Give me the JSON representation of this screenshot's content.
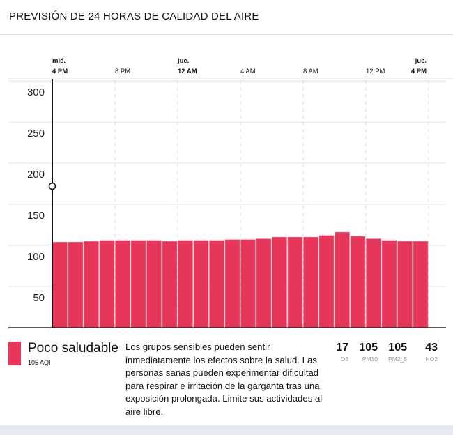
{
  "header": {
    "title": "PREVISIÓN DE 24 HORAS DE CALIDAD DEL AIRE"
  },
  "chart_data": {
    "type": "bar",
    "title": "PREVISIÓN DE 24 HORAS DE CALIDAD DEL AIRE",
    "x_ticks": [
      {
        "day": "mié.",
        "time": "4 PM",
        "hour": 0,
        "bold": true
      },
      {
        "day": "",
        "time": "8 PM",
        "hour": 4,
        "bold": false
      },
      {
        "day": "jue.",
        "time": "12 AM",
        "hour": 8,
        "bold": true
      },
      {
        "day": "",
        "time": "4 AM",
        "hour": 12,
        "bold": false
      },
      {
        "day": "",
        "time": "8 AM",
        "hour": 16,
        "bold": false
      },
      {
        "day": "",
        "time": "12 PM",
        "hour": 20,
        "bold": false
      },
      {
        "day": "jue.",
        "time": "4 PM",
        "hour": 24,
        "bold": true
      }
    ],
    "y_ticks": [
      50,
      100,
      150,
      200,
      250,
      300
    ],
    "ylim": [
      0,
      300
    ],
    "values": [
      104,
      104,
      105,
      106,
      106,
      106,
      106,
      105,
      106,
      106,
      106,
      107,
      107,
      108,
      110,
      110,
      110,
      112,
      116,
      111,
      108,
      106,
      105,
      105
    ],
    "bar_color": "#e8355a",
    "marker_value": 172
  },
  "summary": {
    "category": "Poco saludable",
    "aqi": "105 AQI",
    "color": "#e8355a",
    "description": "Los grupos sensibles pueden sentir inmediatamente los efectos sobre la salud. Las personas sanas pueden experimentar dificultad para respirar e irritación de la garganta tras una exposición prolongada. Limite sus actividades al aire libre.",
    "pollutants": [
      {
        "value": "17",
        "label": "O3"
      },
      {
        "value": "105",
        "label": "PM10"
      },
      {
        "value": "105",
        "label": "PM2_5"
      },
      {
        "value": "43",
        "label": "NO2"
      }
    ]
  }
}
